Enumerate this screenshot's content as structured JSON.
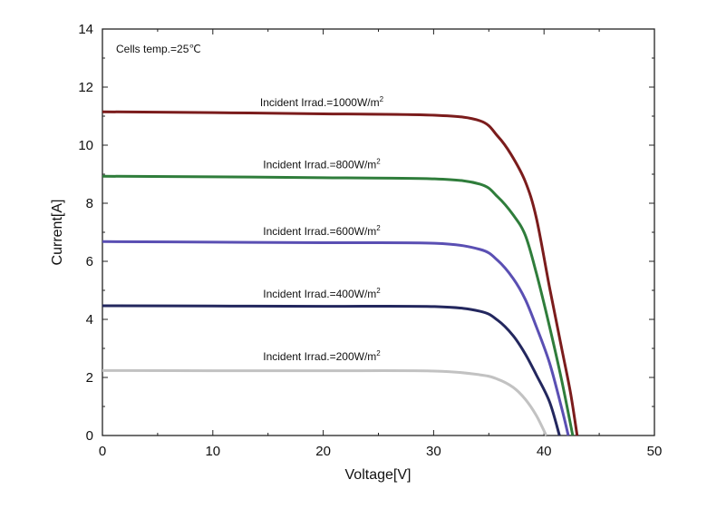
{
  "chart_data": {
    "type": "line",
    "title": "",
    "xlabel": "Voltage[V]",
    "ylabel": "Current[A]",
    "xlim": [
      0,
      50
    ],
    "ylim": [
      0,
      14
    ],
    "xticks": [
      0,
      10,
      20,
      30,
      40,
      50
    ],
    "yticks": [
      0,
      2,
      4,
      6,
      8,
      10,
      12,
      14
    ],
    "grid": false,
    "annotation": "Cells temp.=25℃",
    "series": [
      {
        "name": "Incident Irrad.=1000W/m",
        "sup": "2",
        "color": "#7b1c1c",
        "x": [
          0,
          10,
          20,
          30.1,
          34.2,
          35.8,
          37.0,
          38.3,
          39.3,
          40.5,
          41.6,
          42.4,
          43.0
        ],
        "y": [
          11.15,
          11.12,
          11.08,
          11.03,
          10.84,
          10.31,
          9.69,
          8.75,
          7.5,
          5.1,
          3.0,
          1.47,
          0
        ]
      },
      {
        "name": "Incident Irrad.=800W/m",
        "sup": "2",
        "color": "#2f7d3b",
        "x": [
          0,
          10,
          20,
          30.1,
          34.2,
          35.8,
          37.2,
          38.3,
          39.3,
          40.5,
          41.6,
          42.6
        ],
        "y": [
          8.93,
          8.91,
          8.88,
          8.84,
          8.66,
          8.22,
          7.6,
          6.9,
          5.6,
          3.75,
          1.9,
          0
        ]
      },
      {
        "name": "Incident Irrad.=600W/m",
        "sup": "2",
        "color": "#5a4fb3",
        "x": [
          0,
          10,
          20,
          30.1,
          34.2,
          35.8,
          37.2,
          38.3,
          39.3,
          40.5,
          41.6,
          42.2
        ],
        "y": [
          6.68,
          6.66,
          6.64,
          6.62,
          6.41,
          6.03,
          5.41,
          4.69,
          3.75,
          2.5,
          0.94,
          0
        ]
      },
      {
        "name": "Incident Irrad.=400W/m",
        "sup": "2",
        "color": "#23275e",
        "x": [
          0,
          10,
          20,
          30.1,
          34.2,
          35.8,
          37.2,
          38.3,
          39.3,
          40.5,
          41.4
        ],
        "y": [
          4.47,
          4.46,
          4.45,
          4.44,
          4.28,
          3.97,
          3.44,
          2.81,
          2.09,
          1.16,
          0
        ]
      },
      {
        "name": "Incident Irrad.=200W/m",
        "sup": "2",
        "color": "#c2c2c2",
        "x": [
          0,
          10,
          20,
          30.1,
          34.2,
          35.8,
          37.2,
          38.3,
          39.3,
          40.2
        ],
        "y": [
          2.24,
          2.23,
          2.23,
          2.22,
          2.09,
          1.94,
          1.66,
          1.25,
          0.69,
          0
        ]
      }
    ]
  }
}
